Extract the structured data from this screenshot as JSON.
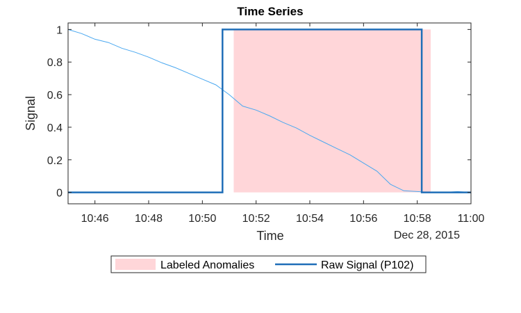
{
  "chart_data": {
    "type": "line",
    "title": "Time Series",
    "xlabel": "Time",
    "ylabel": "Signal",
    "date_label": "Dec 28, 2015",
    "x_ticks": [
      "10:46",
      "10:48",
      "10:50",
      "10:52",
      "10:54",
      "10:56",
      "10:58",
      "11:00"
    ],
    "y_ticks": [
      "0",
      "0.2",
      "0.4",
      "0.6",
      "0.8",
      "1"
    ],
    "xlim": [
      "10:45:00",
      "11:00:00"
    ],
    "ylim": [
      -0.07,
      1.04
    ],
    "grid": false,
    "legend_position": "bottom",
    "anomaly_regions": [
      {
        "name": "Labeled Anomalies",
        "start": "10:51:10",
        "end": "10:58:30",
        "color": "#ffd6d9"
      }
    ],
    "series": [
      {
        "name": "",
        "color": "#4aa8f0",
        "points": [
          [
            "10:45:00",
            1.0
          ],
          [
            "10:45:30",
            0.975
          ],
          [
            "10:46:00",
            0.94
          ],
          [
            "10:46:30",
            0.92
          ],
          [
            "10:47:00",
            0.885
          ],
          [
            "10:47:30",
            0.86
          ],
          [
            "10:48:00",
            0.83
          ],
          [
            "10:48:30",
            0.795
          ],
          [
            "10:49:00",
            0.765
          ],
          [
            "10:49:30",
            0.73
          ],
          [
            "10:50:00",
            0.695
          ],
          [
            "10:50:30",
            0.66
          ],
          [
            "10:51:00",
            0.6
          ],
          [
            "10:51:30",
            0.53
          ],
          [
            "10:52:00",
            0.505
          ],
          [
            "10:52:30",
            0.47
          ],
          [
            "10:53:00",
            0.43
          ],
          [
            "10:53:30",
            0.395
          ],
          [
            "10:54:00",
            0.35
          ],
          [
            "10:54:30",
            0.31
          ],
          [
            "10:55:00",
            0.27
          ],
          [
            "10:55:30",
            0.23
          ],
          [
            "10:56:00",
            0.18
          ],
          [
            "10:56:30",
            0.13
          ],
          [
            "10:57:00",
            0.05
          ],
          [
            "10:57:30",
            0.01
          ],
          [
            "10:58:00",
            0.005
          ],
          [
            "10:58:30",
            0.0
          ],
          [
            "10:59:00",
            0.0
          ],
          [
            "10:59:30",
            0.005
          ],
          [
            "11:00:00",
            0.0
          ]
        ]
      },
      {
        "name": "Raw Signal (P102)",
        "color": "#1f6eb8",
        "points": [
          [
            "10:45:00",
            0
          ],
          [
            "10:50:45",
            0
          ],
          [
            "10:50:45",
            1
          ],
          [
            "10:58:10",
            1
          ],
          [
            "10:58:10",
            0
          ],
          [
            "11:00:00",
            0
          ]
        ]
      }
    ],
    "legend": [
      {
        "label": "Labeled Anomalies",
        "kind": "patch",
        "color": "#ffd6d9"
      },
      {
        "label": "Raw Signal (P102)",
        "kind": "line",
        "color": "#1f6eb8"
      }
    ]
  }
}
